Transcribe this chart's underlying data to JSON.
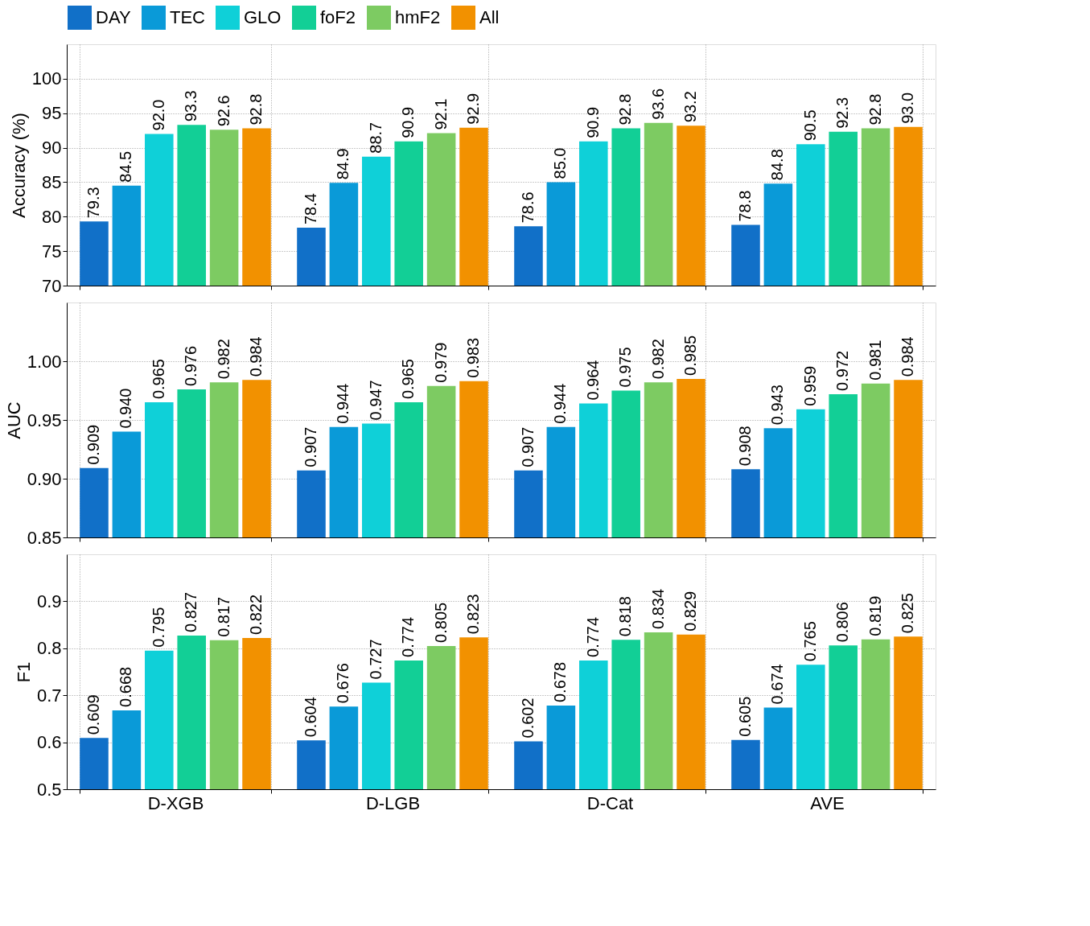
{
  "chart_data": [
    {
      "type": "bar",
      "ylabel": "Accuracy (%)",
      "categories": [
        null,
        null,
        null,
        null
      ],
      "ylim": [
        70,
        105
      ],
      "yticks": [
        70,
        75,
        80,
        85,
        90,
        95,
        100
      ],
      "grid": true,
      "legend": "top",
      "series": [
        {
          "name": "DAY",
          "color": "#1170c8",
          "values": [
            79.3,
            78.4,
            78.6,
            78.8
          ],
          "value_labels": [
            "79.3",
            "78.4",
            "78.6",
            "78.8"
          ]
        },
        {
          "name": "TEC",
          "color": "#0a9ad8",
          "values": [
            84.5,
            84.9,
            85.0,
            84.8
          ],
          "value_labels": [
            "84.5",
            "84.9",
            "85.0",
            "84.8"
          ]
        },
        {
          "name": "GLO",
          "color": "#0fd0d8",
          "values": [
            92.0,
            88.7,
            90.9,
            90.5
          ],
          "value_labels": [
            "92.0",
            "88.7",
            "90.9",
            "90.5"
          ]
        },
        {
          "name": "foF2",
          "color": "#12cf96",
          "values": [
            93.3,
            90.9,
            92.8,
            92.3
          ],
          "value_labels": [
            "93.3",
            "90.9",
            "92.8",
            "92.3"
          ]
        },
        {
          "name": "hmF2",
          "color": "#7dcb62",
          "values": [
            92.6,
            92.1,
            93.6,
            92.8
          ],
          "value_labels": [
            "92.6",
            "92.1",
            "93.6",
            "92.8"
          ]
        },
        {
          "name": "All",
          "color": "#f29100",
          "values": [
            92.8,
            92.9,
            93.2,
            93.0
          ],
          "value_labels": [
            "92.8",
            "92.9",
            "93.2",
            "93.0"
          ]
        }
      ]
    },
    {
      "type": "bar",
      "ylabel": "AUC",
      "categories": [
        null,
        null,
        null,
        null
      ],
      "ylim": [
        0.85,
        1.05
      ],
      "yticks": [
        0.85,
        {
          "value": 0.9,
          "label": "0.90"
        },
        0.95,
        {
          "value": 1.0,
          "label": "1.00"
        }
      ],
      "grid": true,
      "series": [
        {
          "color": "#1170c8",
          "values": [
            0.909,
            0.907,
            0.907,
            0.908
          ],
          "value_labels": [
            "0.909",
            "0.907",
            "0.907",
            "0.908"
          ]
        },
        {
          "color": "#0a9ad8",
          "values": [
            0.94,
            0.944,
            0.944,
            0.943
          ],
          "value_labels": [
            "0.940",
            "0.944",
            "0.944",
            "0.943"
          ]
        },
        {
          "color": "#0fd0d8",
          "values": [
            0.965,
            0.947,
            0.964,
            0.959
          ],
          "value_labels": [
            "0.965",
            "0.947",
            "0.964",
            "0.959"
          ]
        },
        {
          "color": "#12cf96",
          "values": [
            0.976,
            0.965,
            0.975,
            0.972
          ],
          "value_labels": [
            "0.976",
            "0.965",
            "0.975",
            "0.972"
          ]
        },
        {
          "color": "#7dcb62",
          "values": [
            0.982,
            0.979,
            0.982,
            0.981
          ],
          "value_labels": [
            "0.982",
            "0.979",
            "0.982",
            "0.981"
          ]
        },
        {
          "color": "#f29100",
          "values": [
            0.984,
            0.983,
            0.985,
            0.984
          ],
          "value_labels": [
            "0.984",
            "0.983",
            "0.985",
            "0.984"
          ]
        }
      ]
    },
    {
      "type": "bar",
      "ylabel": "F1",
      "categories": [
        "D-XGB",
        "D-LGB",
        "D-Cat",
        "AVE"
      ],
      "ylim": [
        0.5,
        1.0
      ],
      "yticks": [
        0.5,
        0.6,
        0.7,
        0.8,
        0.9
      ],
      "grid": true,
      "series": [
        {
          "color": "#1170c8",
          "values": [
            0.609,
            0.604,
            0.602,
            0.605
          ],
          "value_labels": [
            "0.609",
            "0.604",
            "0.602",
            "0.605"
          ]
        },
        {
          "color": "#0a9ad8",
          "values": [
            0.668,
            0.676,
            0.678,
            0.674
          ],
          "value_labels": [
            "0.668",
            "0.676",
            "0.678",
            "0.674"
          ]
        },
        {
          "color": "#0fd0d8",
          "values": [
            0.795,
            0.727,
            0.774,
            0.765
          ],
          "value_labels": [
            "0.795",
            "0.727",
            "0.774",
            "0.765"
          ]
        },
        {
          "color": "#12cf96",
          "values": [
            0.827,
            0.774,
            0.818,
            0.806
          ],
          "value_labels": [
            "0.827",
            "0.774",
            "0.818",
            "0.806"
          ]
        },
        {
          "color": "#7dcb62",
          "values": [
            0.817,
            0.805,
            0.834,
            0.819
          ],
          "value_labels": [
            "0.817",
            "0.805",
            "0.834",
            "0.819"
          ]
        },
        {
          "color": "#f29100",
          "values": [
            0.822,
            0.823,
            0.829,
            0.825
          ],
          "value_labels": [
            "0.822",
            "0.823",
            "0.829",
            "0.825"
          ]
        }
      ]
    }
  ]
}
